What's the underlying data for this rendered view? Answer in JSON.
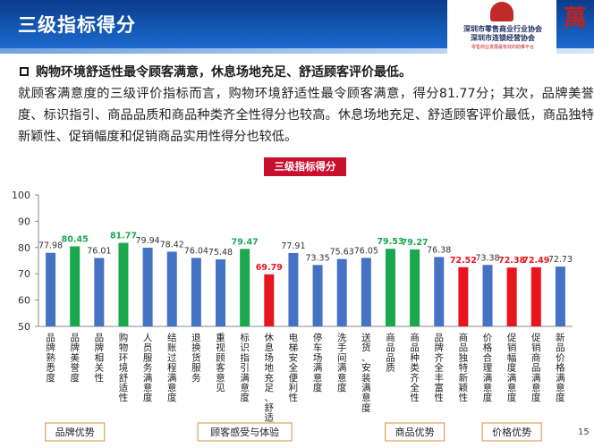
{
  "header": {
    "title": "三级指标得分"
  },
  "logo": {
    "line1": "深圳市零售商业行业协会",
    "line2": "深圳市连锁经营协会",
    "line3": "零售商业发展最有效的助推平台",
    "char": "萬"
  },
  "bullet": "购物环境舒适性最令顾客满意，休息场地充足、舒适顾客评价最低。",
  "paragraph": "就顾客满意度的三级评价指标而言，购物环境舒适性最令顾客满意，得分81.77分；其次，品牌美誉度、标识指引、商品品质和商品种类齐全性得分也较高。休息场地充足、舒适顾客评价最低，商品独特新颖性、促销幅度和促销商品实用性得分也较低。",
  "chart_banner": "三级指标得分",
  "page_number": "15",
  "colors": {
    "blue": "#4472c4",
    "green": "#1aa84e",
    "red": "#e8141e",
    "group_border": "#e3a05a"
  },
  "chart_data": {
    "type": "bar",
    "ylim": [
      50,
      100
    ],
    "yticks": [
      50,
      60,
      70,
      80,
      90,
      100
    ],
    "categories": [
      "品牌熟悉度",
      "品牌美誉度",
      "品牌相关性",
      "购物环境舒适性",
      "人员服务满意度",
      "结账过程满意度",
      "退换货服务",
      "重视顾客意见",
      "标识指引满意度",
      "休息场地充足、舒适",
      "电梯安全便利性",
      "停车场满意度",
      "洗手间满意度",
      "送货、安装满意度",
      "商品品质",
      "商品种类齐全性",
      "品牌齐全丰富性",
      "商品独特新颖性",
      "价格合理满意度",
      "促销幅度满意度",
      "促销商品满意度",
      "新品价格满意度"
    ],
    "values": [
      77.98,
      80.45,
      76.01,
      81.77,
      79.94,
      78.42,
      76.04,
      75.48,
      79.47,
      69.79,
      77.91,
      73.35,
      75.63,
      76.05,
      79.53,
      79.27,
      76.38,
      72.52,
      73.38,
      72.38,
      72.49,
      72.73
    ],
    "value_labels": [
      "77.98",
      "80.45",
      "76.01",
      "81.77",
      "79.94",
      "78.42",
      "76.04",
      "75.48",
      "79.47",
      "69.79",
      "77.91",
      "73.35",
      "75.63",
      "76.05",
      "79.53",
      "79.27",
      "76.38",
      "72.52",
      "73.38",
      "72.38",
      "72.49",
      "72.73"
    ],
    "highlight": [
      "blue",
      "green",
      "blue",
      "green",
      "blue",
      "blue",
      "blue",
      "blue",
      "green",
      "red",
      "blue",
      "blue",
      "blue",
      "blue",
      "green",
      "green",
      "blue",
      "red",
      "blue",
      "red",
      "red",
      "blue"
    ],
    "groups": [
      {
        "label": "品牌优势",
        "start": 0,
        "end": 2
      },
      {
        "label": "顾客感受与体验",
        "start": 3,
        "end": 13
      },
      {
        "label": "商品优势",
        "start": 14,
        "end": 16
      },
      {
        "label": "价格优势",
        "start": 17,
        "end": 21
      }
    ]
  }
}
